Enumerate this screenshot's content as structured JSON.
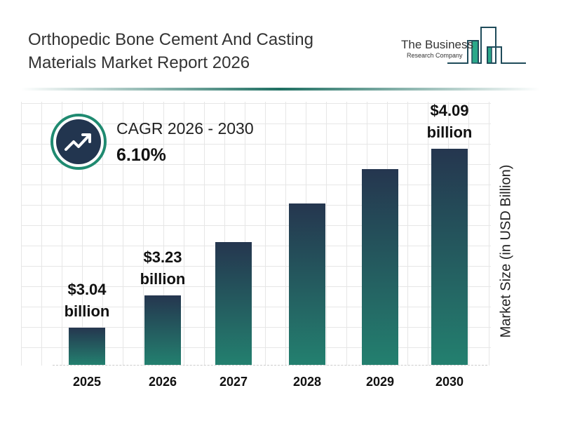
{
  "header": {
    "title_line1": "Orthopedic Bone Cement And Casting",
    "title_line2": "Materials Market Report 2026"
  },
  "logo": {
    "line1": "The Business",
    "line2": "Research Company"
  },
  "cagr": {
    "label": "CAGR 2026 - 2030",
    "value": "6.10%",
    "icon": "trending-up-icon"
  },
  "colors": {
    "bar_top": "#25364f",
    "bar_bottom": "#23806f",
    "accent": "#1f8a70"
  },
  "chart_data": {
    "type": "bar",
    "categories": [
      "2025",
      "2026",
      "2027",
      "2028",
      "2029",
      "2030"
    ],
    "values": [
      3.04,
      3.23,
      3.54,
      3.77,
      3.97,
      4.09
    ],
    "data_labels": [
      {
        "index": 0,
        "line1": "$3.04",
        "line2": "billion"
      },
      {
        "index": 1,
        "line1": "$3.23",
        "line2": "billion"
      },
      {
        "index": 5,
        "line1": "$4.09",
        "line2": "billion"
      }
    ],
    "ylabel": "Market Size (in USD Billion)",
    "xlabel": "",
    "ylim": [
      2.82,
      4.09
    ],
    "grid": true,
    "legend": "none"
  }
}
